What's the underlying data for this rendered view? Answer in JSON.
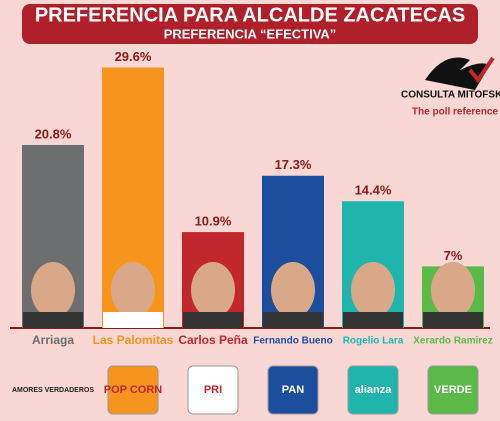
{
  "chart_data": {
    "type": "bar",
    "title": "PREFERENCIA PARA ALCALDE ZACATECAS",
    "subtitle": "PREFERENCIA “EFECTIVA”",
    "source": "CONSULTA MITOFSKY",
    "source_tagline": "The poll reference",
    "categories": [
      "Arriaga",
      "Las Palomitas",
      "Carlos Peña",
      "Fernando Bueno",
      "Rogelio Lara",
      "Xerardo Ramirez"
    ],
    "values": [
      20.8,
      29.6,
      10.9,
      17.3,
      14.4,
      7
    ],
    "value_labels": [
      "20.8%",
      "29.6%",
      "10.9%",
      "17.3%",
      "14.4%",
      "7%"
    ],
    "colors": [
      "#6d6e70",
      "#f7941d",
      "#c1272d",
      "#1d4e9e",
      "#1fb5ad",
      "#5bb947"
    ],
    "logos": [
      "AMORES VERDADEROS",
      "POP CORN",
      "PRI",
      "PAN",
      "alianza",
      "VERDE"
    ]
  }
}
